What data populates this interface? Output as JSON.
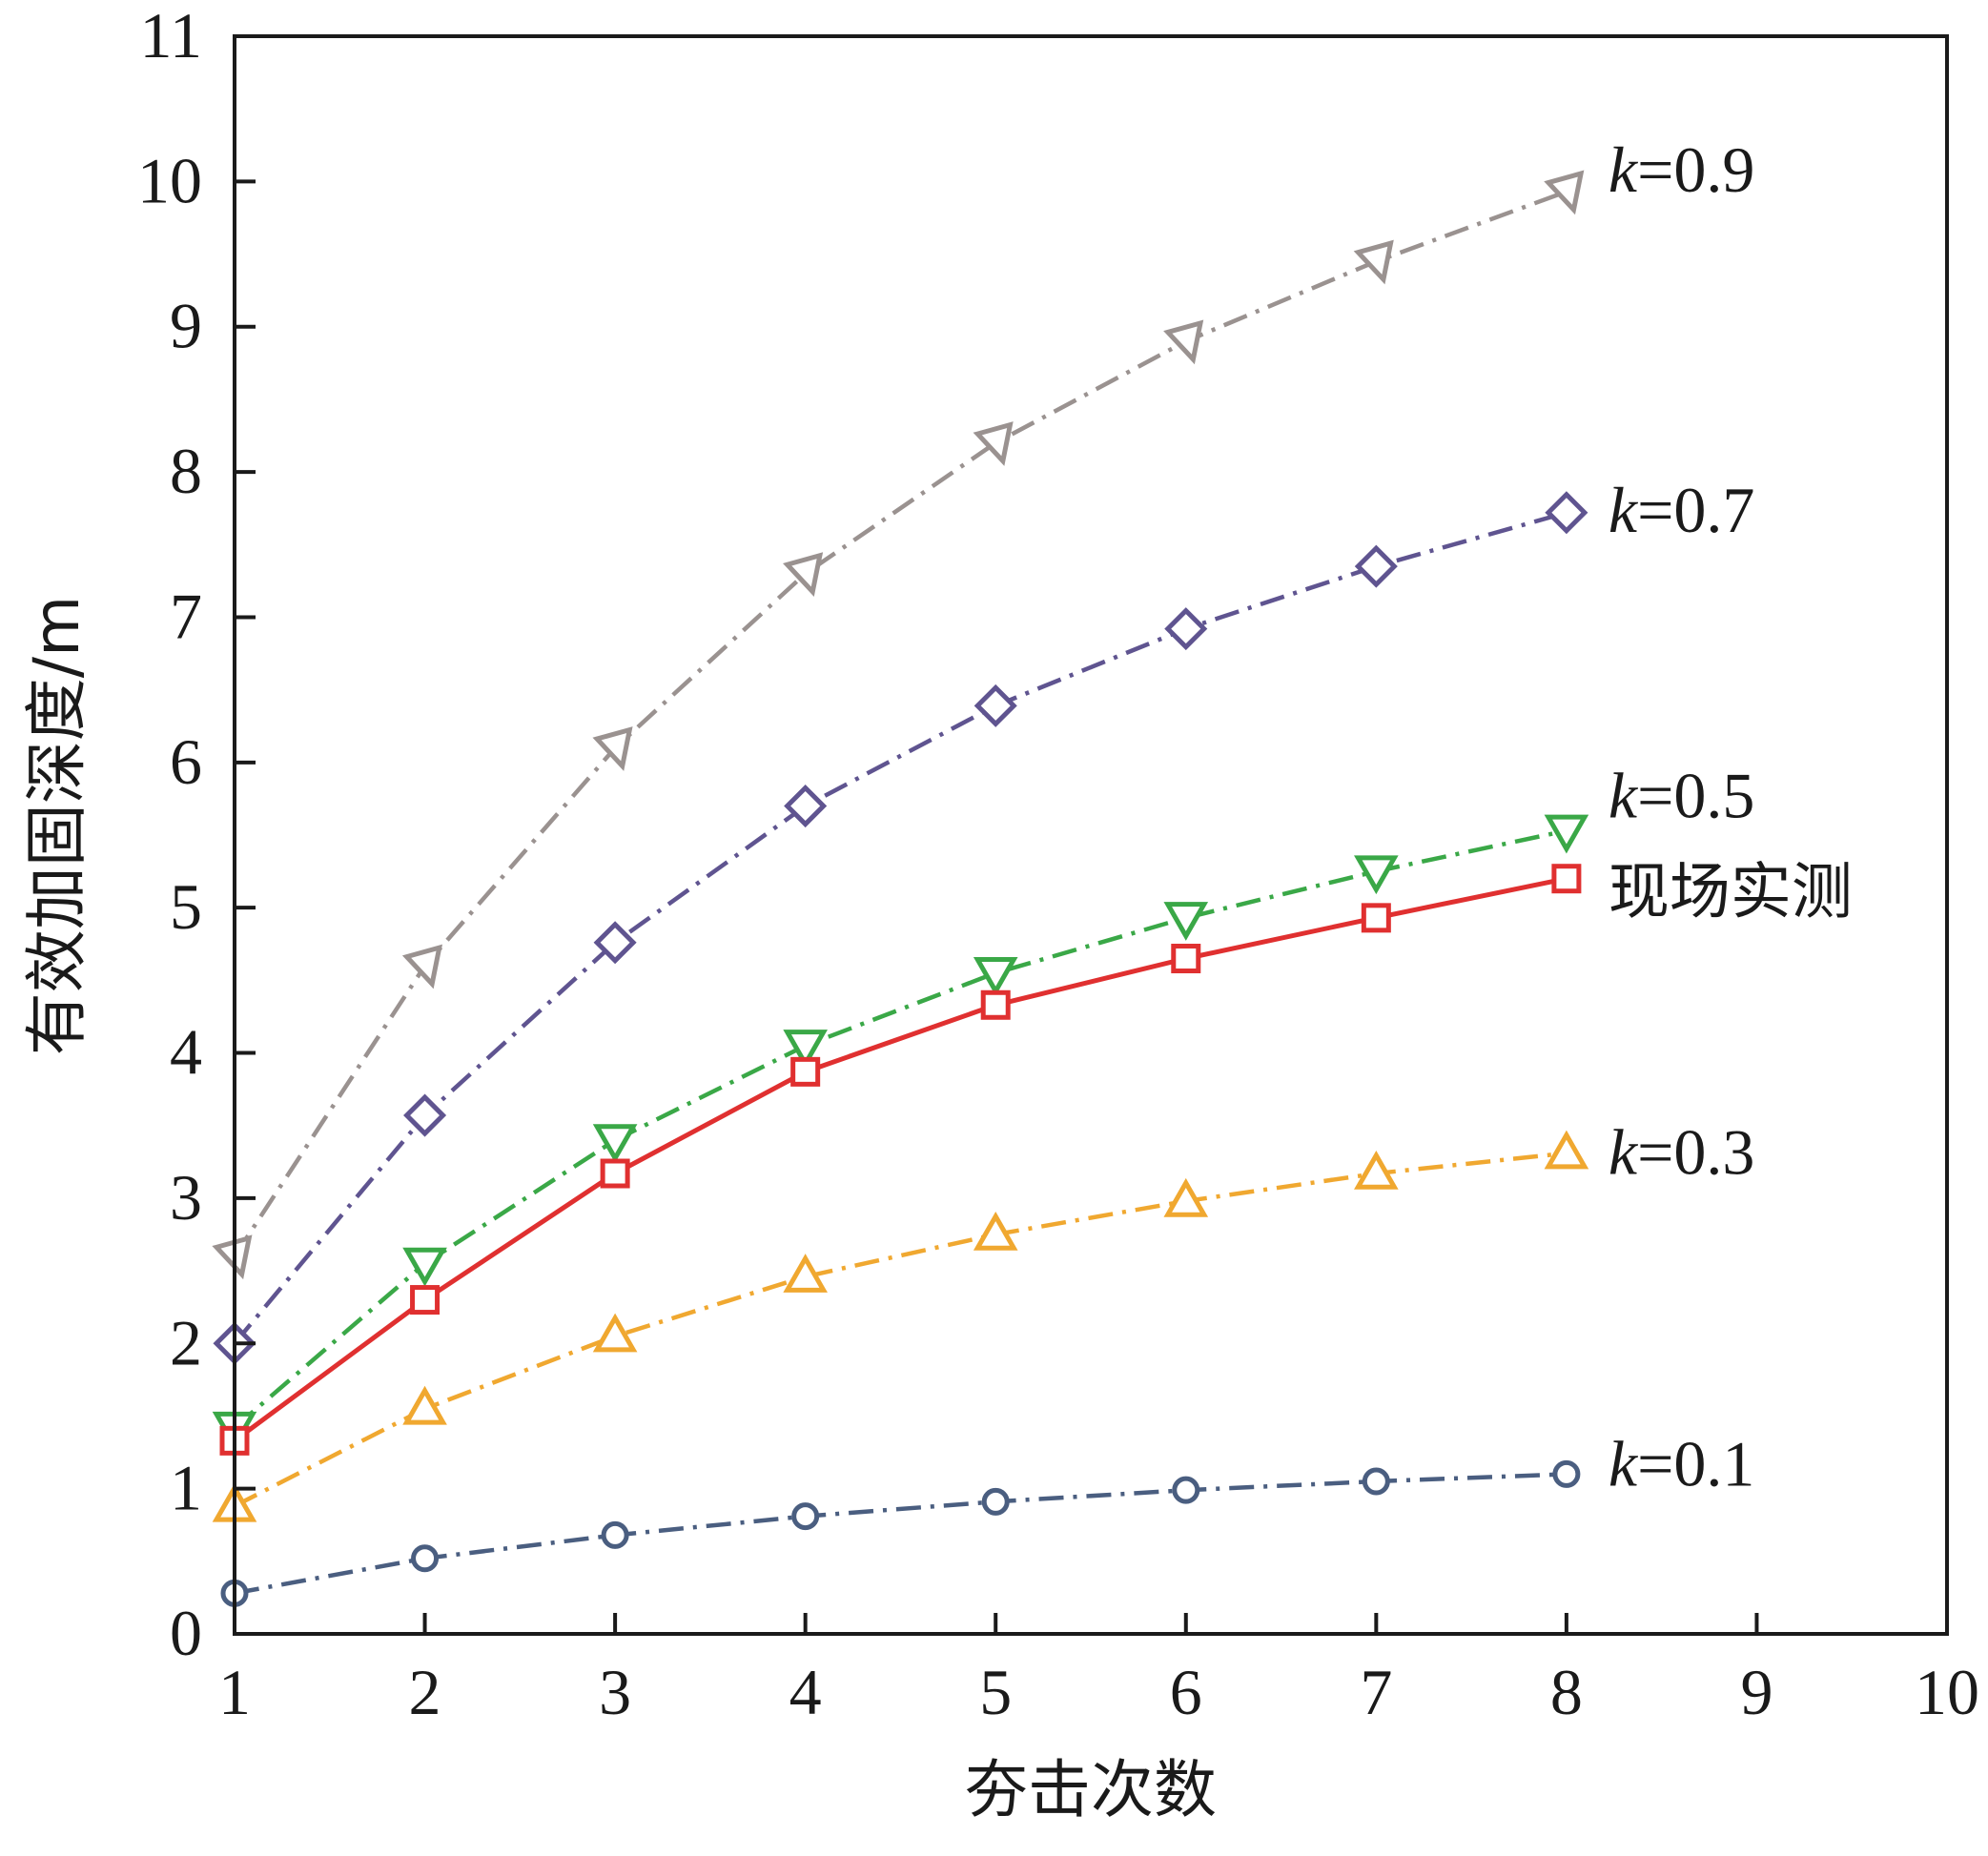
{
  "chart_data": {
    "type": "line",
    "title": "",
    "xlabel": "夯击次数",
    "ylabel": "有效加固深度/m",
    "xlim": [
      1,
      10
    ],
    "ylim": [
      0,
      11
    ],
    "x_ticks": [
      "1",
      "2",
      "3",
      "4",
      "5",
      "6",
      "7",
      "8",
      "9",
      "10"
    ],
    "y_ticks": [
      "0",
      "1",
      "2",
      "3",
      "4",
      "5",
      "6",
      "7",
      "8",
      "9",
      "10",
      "11"
    ],
    "grid": false,
    "legend": "inline labels at right end of each series",
    "x": [
      1,
      2,
      3,
      4,
      5,
      6,
      7,
      8
    ],
    "series": [
      {
        "name": "k=0.9",
        "label_prefix": "k",
        "label_suffix": "=0.9",
        "marker": "triangle-left",
        "line_style": "dash-dot",
        "color": "#9a9290",
        "values": [
          2.6,
          4.6,
          6.1,
          7.3,
          8.2,
          8.9,
          9.45,
          9.93
        ]
      },
      {
        "name": "k=0.7",
        "label_prefix": "k",
        "label_suffix": "=0.7",
        "marker": "diamond",
        "line_style": "dash-dot",
        "color": "#5f5490",
        "values": [
          2.0,
          3.57,
          4.76,
          5.7,
          6.39,
          6.92,
          7.35,
          7.72
        ]
      },
      {
        "name": "k=0.5",
        "label_prefix": "k",
        "label_suffix": "=0.5",
        "marker": "triangle-down",
        "line_style": "dash-dot",
        "color": "#3aa847",
        "values": [
          1.42,
          2.55,
          3.4,
          4.05,
          4.55,
          4.93,
          5.25,
          5.53
        ]
      },
      {
        "name": "现场实测",
        "label_prefix": "",
        "label_suffix": "现场实测",
        "marker": "square",
        "line_style": "solid",
        "color": "#e03030",
        "values": [
          1.33,
          2.3,
          3.17,
          3.87,
          4.33,
          4.65,
          4.93,
          5.2
        ]
      },
      {
        "name": "k=0.3",
        "label_prefix": "k",
        "label_suffix": "=0.3",
        "marker": "triangle-up",
        "line_style": "dash-dot",
        "color": "#f0a830",
        "values": [
          0.88,
          1.55,
          2.05,
          2.46,
          2.75,
          2.98,
          3.17,
          3.31
        ]
      },
      {
        "name": "k=0.1",
        "label_prefix": "k",
        "label_suffix": "=0.1",
        "marker": "circle",
        "line_style": "dash-dot",
        "color": "#4a5e80",
        "values": [
          0.28,
          0.52,
          0.68,
          0.81,
          0.91,
          0.99,
          1.05,
          1.1
        ]
      }
    ]
  }
}
